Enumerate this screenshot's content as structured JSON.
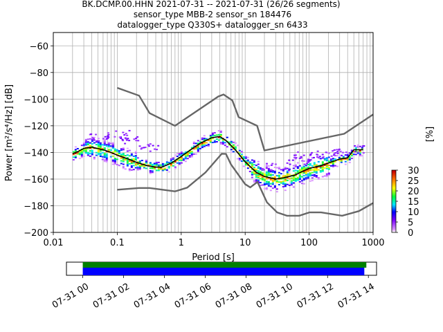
{
  "title": {
    "line1": "BK.DCMP.00.HHN   2021-07-31 -- 2021-07-31  (26/26 segments)",
    "line2": "sensor_type MBB-2 sensor_sn 184476",
    "line3": "datalogger_type Q330S+ datalogger_sn 6433"
  },
  "chart_data": {
    "type": "heatmap",
    "xlabel": "Period [s]",
    "ylabel": "Power [m²/s⁴/Hz] [dB]",
    "xscale": "log",
    "xlim": [
      0.01,
      1000
    ],
    "ylim": [
      -200,
      -50
    ],
    "x_ticks": [
      {
        "value": 0.01,
        "label": "0.01"
      },
      {
        "value": 0.1,
        "label": "0.1"
      },
      {
        "value": 1,
        "label": "1"
      },
      {
        "value": 10,
        "label": "10"
      },
      {
        "value": 100,
        "label": "100"
      },
      {
        "value": 1000,
        "label": "1000"
      }
    ],
    "y_ticks": [
      {
        "value": -60,
        "label": "−60"
      },
      {
        "value": -80,
        "label": "−80"
      },
      {
        "value": -100,
        "label": "−100"
      },
      {
        "value": -120,
        "label": "−120"
      },
      {
        "value": -140,
        "label": "−140"
      },
      {
        "value": -160,
        "label": "−160"
      },
      {
        "value": -180,
        "label": "−180"
      },
      {
        "value": -200,
        "label": "−200"
      }
    ],
    "grid": true,
    "nhnm": [
      [
        0.1,
        -168
      ],
      [
        0.22,
        -166.7
      ],
      [
        0.32,
        -166.7
      ],
      [
        0.8,
        -169.2
      ],
      [
        1.24,
        -166.4
      ],
      [
        2.4,
        -155
      ],
      [
        4.3,
        -141
      ],
      [
        5,
        -141.1
      ],
      [
        6,
        -149
      ],
      [
        10,
        -163.8
      ],
      [
        12,
        -166.2
      ],
      [
        15.6,
        -162.1
      ],
      [
        21.9,
        -177.5
      ],
      [
        31.6,
        -185
      ],
      [
        45,
        -187.5
      ],
      [
        70,
        -187.5
      ],
      [
        101,
        -185
      ],
      [
        154,
        -185
      ],
      [
        328,
        -187.5
      ],
      [
        600,
        -184
      ],
      [
        1000,
        -178
      ]
    ],
    "nlnm": [
      [
        0.1,
        -91.5
      ],
      [
        0.22,
        -97.4
      ],
      [
        0.32,
        -110.5
      ],
      [
        0.8,
        -120
      ],
      [
        3.8,
        -98
      ],
      [
        4.6,
        -96.5
      ],
      [
        6.3,
        -101
      ],
      [
        7.9,
        -113.5
      ],
      [
        15.4,
        -120
      ],
      [
        20,
        -138.5
      ],
      [
        354,
        -126
      ],
      [
        1000,
        -111.5
      ]
    ],
    "mean_curve": [
      [
        0.02,
        -141
      ],
      [
        0.025,
        -139
      ],
      [
        0.03,
        -137
      ],
      [
        0.04,
        -136
      ],
      [
        0.06,
        -138
      ],
      [
        0.08,
        -140
      ],
      [
        0.1,
        -142
      ],
      [
        0.15,
        -145
      ],
      [
        0.2,
        -147.5
      ],
      [
        0.3,
        -150
      ],
      [
        0.4,
        -151
      ],
      [
        0.5,
        -151
      ],
      [
        0.7,
        -148
      ],
      [
        1,
        -143
      ],
      [
        1.5,
        -137
      ],
      [
        2,
        -133
      ],
      [
        3,
        -129
      ],
      [
        4,
        -128
      ],
      [
        5,
        -131
      ],
      [
        7,
        -138
      ],
      [
        10,
        -147
      ],
      [
        15,
        -155
      ],
      [
        20,
        -158
      ],
      [
        30,
        -160
      ],
      [
        40,
        -159
      ],
      [
        60,
        -157
      ],
      [
        80,
        -154
      ],
      [
        100,
        -152
      ],
      [
        150,
        -150
      ],
      [
        200,
        -148
      ],
      [
        300,
        -145
      ],
      [
        400,
        -144
      ],
      [
        500,
        -138
      ],
      [
        700,
        -138
      ]
    ],
    "colorbar": {
      "label": "[%]",
      "range": [
        0,
        30
      ],
      "ticks": [
        0,
        5,
        10,
        15,
        20,
        25,
        30
      ],
      "colormap": "pqlx"
    }
  },
  "timeline": {
    "labels": [
      "07-31 00",
      "07-31 02",
      "07-31 04",
      "07-31 06",
      "07-31 08",
      "07-31 10",
      "07-31 12",
      "07-31 14"
    ],
    "hours": [
      0,
      2,
      4,
      6,
      8,
      10,
      12,
      14
    ],
    "xlim": [
      -0.8,
      14.4
    ],
    "green_bar": [
      0,
      13.9
    ],
    "blue_bar": [
      0,
      13.8
    ],
    "green_color": "#008000",
    "blue_color": "#0000ff"
  }
}
